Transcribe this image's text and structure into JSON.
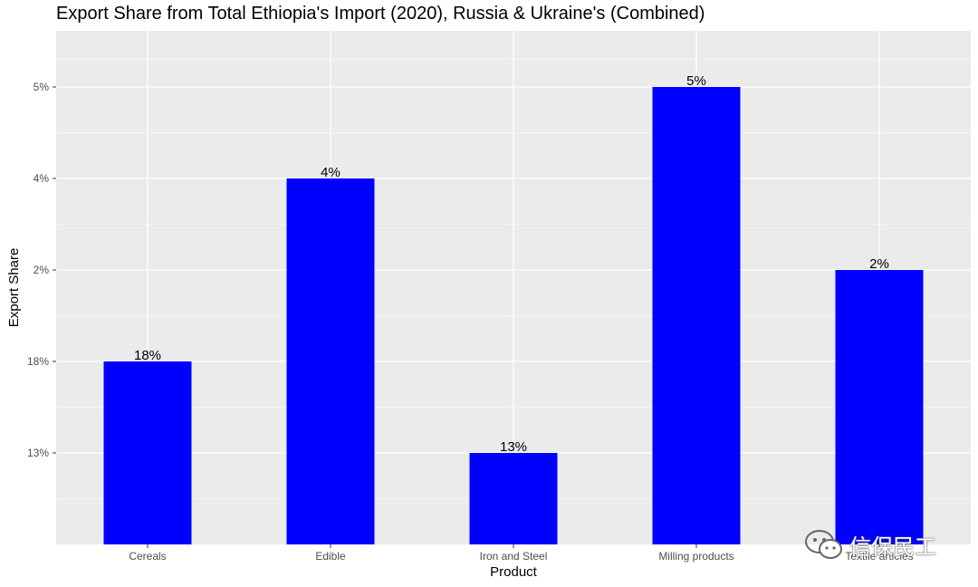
{
  "chart_data": {
    "type": "bar",
    "title": "Export Share from Total Ethiopia's Import (2020), Russia & Ukraine's (Combined)",
    "xlabel": "Product",
    "ylabel": "Export Share",
    "categories": [
      "Cereals",
      "Edible",
      "Iron and Steel",
      "Milling products",
      "Textile articles"
    ],
    "value_labels": [
      "18%",
      "4%",
      "13%",
      "5%",
      "2%"
    ],
    "y_ticks": [
      "13%",
      "18%",
      "2%",
      "4%",
      "5%"
    ],
    "bar_levels": [
      "18%",
      "4%",
      "13%",
      "5%",
      "2%"
    ],
    "y_scale": "discrete",
    "grid": true,
    "bar_color": "#0000ff",
    "panel_color": "#ebebeb",
    "grid_color": "#ffffff"
  },
  "watermark": {
    "text": "信保民工",
    "icon": "wechat-icon"
  }
}
